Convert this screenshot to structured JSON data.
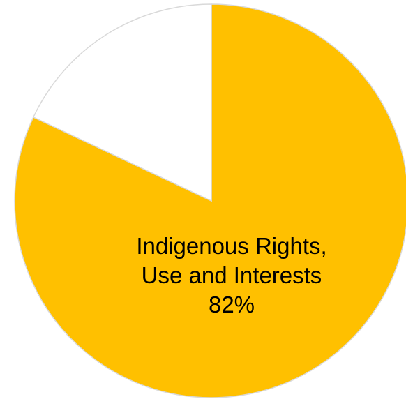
{
  "chart_data": {
    "type": "pie",
    "slices": [
      {
        "label_lines": [
          "Indigenous Rights,",
          "Use and Interests",
          "82%"
        ],
        "value": 82,
        "color": "#FFC000"
      },
      {
        "label_lines": [],
        "value": 18,
        "color": "#FFFFFF"
      }
    ],
    "start_angle_deg": 0,
    "direction": "clockwise",
    "border_color": "#D9D9D9"
  }
}
